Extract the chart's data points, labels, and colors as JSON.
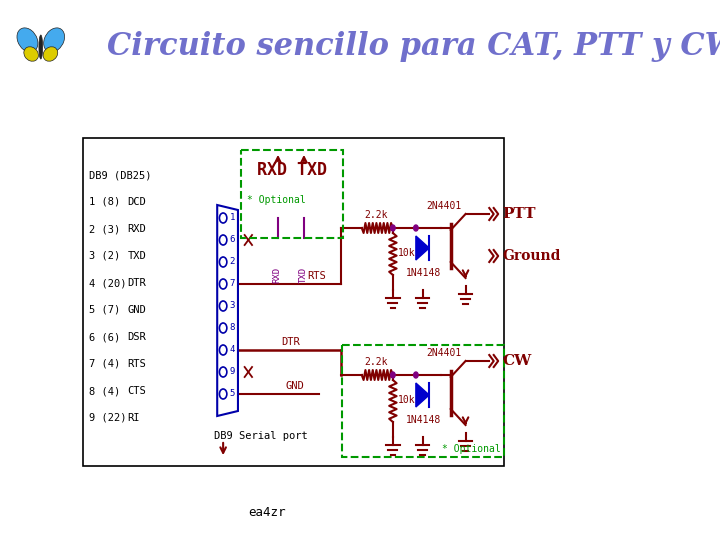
{
  "title": "Circuito sencillo para CAT, PTT y CW",
  "title_color": "#7070cc",
  "title_fontsize": 22,
  "footer_text": "ea4zr",
  "bg_color": "#ffffff",
  "schematic_border": "#000000",
  "db9_labels": [
    "DB9 (DB25)",
    "1 (8)",
    "2 (3)",
    "3 (2)",
    "4 (20)",
    "5 (7)",
    "6 (6)",
    "7 (4)",
    "8 (4)",
    "9 (22)"
  ],
  "db9_signals": [
    "",
    "DCD",
    "RXD",
    "TXD",
    "DTR",
    "GND",
    "DSR",
    "RTS",
    "CTS",
    "RI"
  ],
  "wire_dark": "#800000",
  "wire_blue": "#0000aa",
  "wire_purple": "#800080",
  "green_dashed": "#009900",
  "optional_color": "#009900",
  "transistor_label1": "2N4401",
  "transistor_label2": "2N4401",
  "diode_label1": "1N4148",
  "diode_label2": "1N4148",
  "resistor1_label": "2.2k",
  "resistor2_label": "10k",
  "resistor3_label": "2.2k",
  "resistor4_label": "10k",
  "ptt_label": "PTT",
  "cw_label": "CW",
  "ground_label": "Ground",
  "rxd_txd_label": "RXD TXD",
  "optional1_label": "* Optional",
  "optional2_label": "* Optional",
  "rts_label": "RTS",
  "dtr_label": "DTR",
  "gnd_label": "GND",
  "db9_port_label": "DB9 Serial port"
}
